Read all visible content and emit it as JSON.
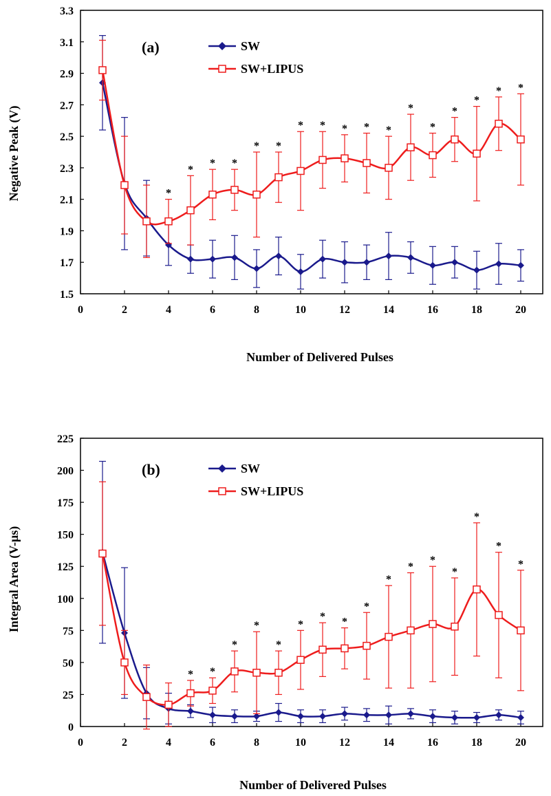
{
  "chart_data": [
    {
      "type": "line",
      "panel_label": "(a)",
      "xlabel": "Number of Delivered Pulses",
      "ylabel": "Negative Peak (V)",
      "xlim": [
        0,
        21
      ],
      "ylim": [
        1.5,
        3.3
      ],
      "x_ticks": [
        0,
        2,
        4,
        6,
        8,
        10,
        12,
        14,
        16,
        18,
        20
      ],
      "y_ticks": [
        "1.5",
        "1.7",
        "1.9",
        "2.1",
        "2.3",
        "2.5",
        "2.7",
        "2.9",
        "3.1",
        "3.3"
      ],
      "legend_position": "top-center",
      "x": [
        1,
        2,
        3,
        4,
        5,
        6,
        7,
        8,
        9,
        10,
        11,
        12,
        13,
        14,
        15,
        16,
        17,
        18,
        19,
        20
      ],
      "series": [
        {
          "name": "SW",
          "color": "#1a1a8c",
          "marker": "diamond",
          "values": [
            2.84,
            2.2,
            1.98,
            1.81,
            1.72,
            1.72,
            1.73,
            1.66,
            1.74,
            1.64,
            1.72,
            1.7,
            1.7,
            1.74,
            1.73,
            1.68,
            1.7,
            1.65,
            1.69,
            1.68
          ],
          "errors": [
            0.3,
            0.42,
            0.24,
            0.13,
            0.09,
            0.12,
            0.14,
            0.12,
            0.12,
            0.11,
            0.12,
            0.13,
            0.11,
            0.15,
            0.1,
            0.12,
            0.1,
            0.12,
            0.13,
            0.1
          ]
        },
        {
          "name": "SW+LIPUS",
          "color": "#ee1c1c",
          "marker": "square",
          "values": [
            2.92,
            2.19,
            1.96,
            1.96,
            2.03,
            2.13,
            2.16,
            2.13,
            2.24,
            2.28,
            2.35,
            2.36,
            2.33,
            2.3,
            2.43,
            2.38,
            2.48,
            2.39,
            2.58,
            2.48
          ],
          "errors": [
            0.19,
            0.31,
            0.23,
            0.14,
            0.22,
            0.16,
            0.13,
            0.27,
            0.16,
            0.25,
            0.18,
            0.15,
            0.19,
            0.2,
            0.21,
            0.14,
            0.14,
            0.3,
            0.17,
            0.29
          ]
        }
      ],
      "significance_marker": "*",
      "significant_x": [
        4,
        5,
        6,
        7,
        8,
        9,
        10,
        11,
        12,
        13,
        14,
        15,
        16,
        17,
        18,
        19,
        20
      ]
    },
    {
      "type": "line",
      "panel_label": "(b)",
      "xlabel": "Number of Delivered Pulses",
      "ylabel": "Integral Area (V-μs)",
      "xlim": [
        0,
        21
      ],
      "ylim": [
        0,
        225
      ],
      "x_ticks": [
        0,
        2,
        4,
        6,
        8,
        10,
        12,
        14,
        16,
        18,
        20
      ],
      "y_ticks": [
        "0",
        "25",
        "50",
        "75",
        "100",
        "125",
        "150",
        "175",
        "200",
        "225"
      ],
      "legend_position": "top-center",
      "x": [
        1,
        2,
        3,
        4,
        5,
        6,
        7,
        8,
        9,
        10,
        11,
        12,
        13,
        14,
        15,
        16,
        17,
        18,
        19,
        20
      ],
      "series": [
        {
          "name": "SW",
          "color": "#1a1a8c",
          "marker": "diamond",
          "values": [
            136,
            73,
            26,
            14,
            12,
            9,
            8,
            8,
            11,
            8,
            8,
            10,
            9,
            9,
            10,
            8,
            7,
            7,
            9,
            7
          ],
          "errors": [
            71,
            51,
            20,
            12,
            5,
            6,
            5,
            4,
            7,
            5,
            5,
            5,
            5,
            7,
            4,
            5,
            5,
            4,
            4,
            5
          ]
        },
        {
          "name": "SW+LIPUS",
          "color": "#ee1c1c",
          "marker": "square",
          "values": [
            135,
            50,
            23,
            17,
            26,
            28,
            43,
            42,
            42,
            52,
            60,
            61,
            63,
            70,
            75,
            80,
            78,
            107,
            87,
            75
          ],
          "errors": [
            56,
            25,
            25,
            17,
            10,
            10,
            16,
            32,
            17,
            23,
            21,
            16,
            26,
            40,
            45,
            45,
            38,
            52,
            49,
            47
          ]
        }
      ],
      "significance_marker": "*",
      "significant_x": [
        5,
        6,
        7,
        8,
        9,
        10,
        11,
        12,
        13,
        14,
        15,
        16,
        17,
        18,
        19,
        20
      ]
    }
  ]
}
